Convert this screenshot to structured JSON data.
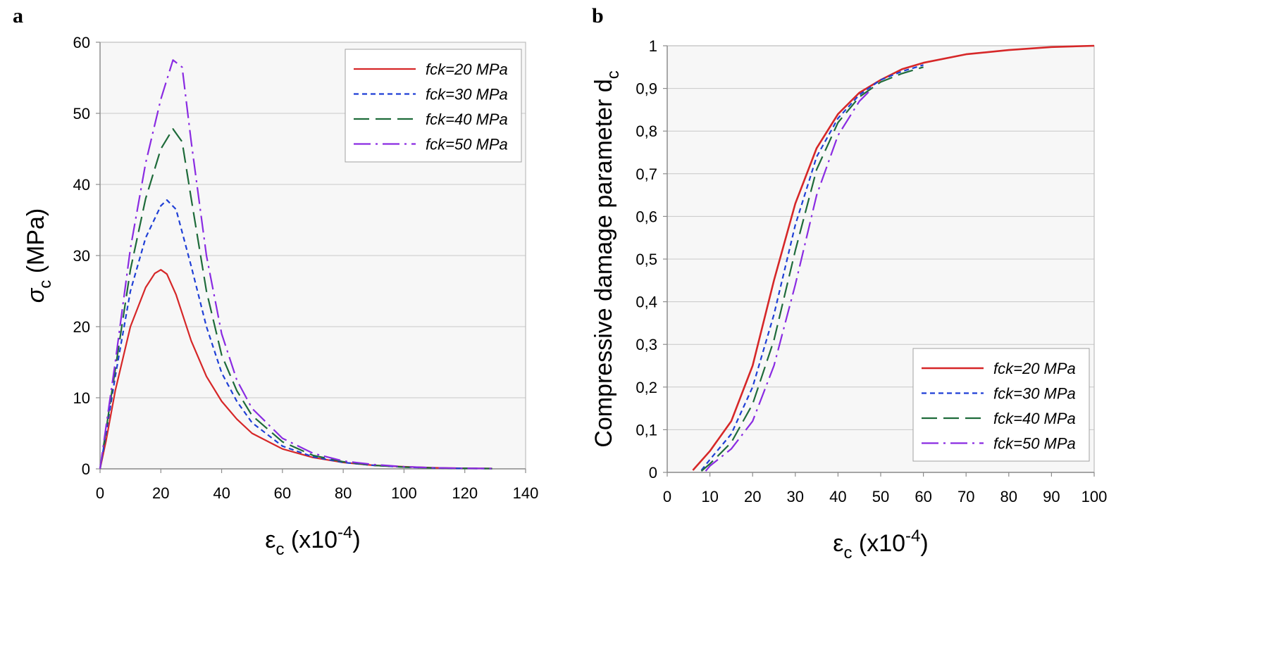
{
  "panels": {
    "a": "a",
    "b": "b"
  },
  "chart_data": [
    {
      "type": "line",
      "panel": "a",
      "xlabel": {
        "main": "ε",
        "sub": "c",
        "rest": " (x10",
        "sup": "-4",
        "close": ")"
      },
      "ylabel": {
        "main": "σ",
        "sub": "c",
        "rest": " (MPa)"
      },
      "xlim": [
        0,
        140
      ],
      "ylim": [
        0,
        60
      ],
      "xticks": [
        0,
        20,
        40,
        60,
        80,
        100,
        120,
        140
      ],
      "yticks": [
        0,
        10,
        20,
        30,
        40,
        50,
        60
      ],
      "xtick_labels": [
        "0",
        "20",
        "40",
        "60",
        "80",
        "100",
        "120",
        "140"
      ],
      "ytick_labels": [
        "0",
        "10",
        "20",
        "30",
        "40",
        "50",
        "60"
      ],
      "legend": "top-right",
      "series": [
        {
          "name": "fck=20 MPa",
          "color": "#d62728",
          "dash": "",
          "x": [
            0,
            2,
            5,
            10,
            15,
            18,
            20,
            22,
            25,
            30,
            35,
            40,
            45,
            50,
            60,
            70,
            80,
            90,
            100,
            110,
            120,
            129
          ],
          "y": [
            0,
            4,
            11,
            20,
            25.5,
            27.5,
            28,
            27.4,
            24.5,
            18,
            13,
            9.5,
            7,
            5,
            2.8,
            1.6,
            0.9,
            0.5,
            0.3,
            0.15,
            0.08,
            0.05
          ]
        },
        {
          "name": "fck=30 MPa",
          "color": "#1f3fd6",
          "dash": "7,5",
          "x": [
            0,
            2,
            5,
            10,
            15,
            20,
            22,
            25,
            30,
            35,
            40,
            45,
            50,
            60,
            70,
            80,
            90,
            100,
            110,
            120,
            129
          ],
          "y": [
            0,
            5,
            13,
            25,
            32.5,
            37,
            37.8,
            36.5,
            28.5,
            20,
            13.5,
            9.5,
            6.5,
            3.2,
            1.7,
            0.9,
            0.5,
            0.25,
            0.12,
            0.06,
            0.04
          ]
        },
        {
          "name": "fck=40 MPa",
          "color": "#1e6b3a",
          "dash": "22,9",
          "x": [
            0,
            2,
            5,
            10,
            15,
            20,
            24,
            27,
            30,
            35,
            40,
            45,
            50,
            60,
            70,
            80,
            90,
            100,
            110,
            120,
            129
          ],
          "y": [
            0,
            5.5,
            14,
            28,
            38,
            45,
            47.8,
            46,
            38,
            25,
            16,
            11,
            7.5,
            3.8,
            1.9,
            1,
            0.5,
            0.25,
            0.12,
            0.06,
            0.04
          ]
        },
        {
          "name": "fck=50 MPa",
          "color": "#8a2be2",
          "dash": "24,7,3,7",
          "x": [
            0,
            2,
            5,
            10,
            15,
            20,
            24,
            27,
            30,
            35,
            40,
            45,
            50,
            60,
            70,
            80,
            90,
            100,
            110,
            120,
            129
          ],
          "y": [
            0,
            6,
            15,
            31,
            43,
            52,
            57.5,
            56.5,
            46,
            30,
            19,
            12.5,
            8.5,
            4.3,
            2.2,
            1.1,
            0.6,
            0.3,
            0.15,
            0.08,
            0.05
          ]
        }
      ]
    },
    {
      "type": "line",
      "panel": "b",
      "xlabel": {
        "main": "ε",
        "sub": "c",
        "rest": " (x10",
        "sup": "-4",
        "close": ")"
      },
      "ylabel": {
        "main": "Compressive damage parameter  d",
        "sub": "c",
        "rest": ""
      },
      "xlim": [
        0,
        100
      ],
      "ylim": [
        0,
        1
      ],
      "xticks": [
        0,
        10,
        20,
        30,
        40,
        50,
        60,
        70,
        80,
        90,
        100
      ],
      "yticks": [
        0,
        0.1,
        0.2,
        0.3,
        0.4,
        0.5,
        0.6,
        0.7,
        0.8,
        0.9,
        1
      ],
      "xtick_labels": [
        "0",
        "10",
        "20",
        "30",
        "40",
        "50",
        "60",
        "70",
        "80",
        "90",
        "100"
      ],
      "ytick_labels": [
        "0",
        "0,1",
        "0,2",
        "0,3",
        "0,4",
        "0,5",
        "0,6",
        "0,7",
        "0,8",
        "0,9",
        "1"
      ],
      "legend": "bottom-right",
      "series": [
        {
          "name": "fck=20 MPa",
          "color": "#d62728",
          "dash": "",
          "x": [
            6,
            10,
            15,
            20,
            25,
            30,
            35,
            40,
            45,
            50,
            55,
            60,
            70,
            80,
            90,
            100
          ],
          "y": [
            0.005,
            0.05,
            0.12,
            0.25,
            0.45,
            0.63,
            0.76,
            0.84,
            0.89,
            0.92,
            0.945,
            0.96,
            0.98,
            0.99,
            0.997,
            1
          ]
        },
        {
          "name": "fck=30 MPa",
          "color": "#1f3fd6",
          "dash": "7,5",
          "x": [
            8,
            10,
            15,
            20,
            25,
            30,
            35,
            40,
            45,
            50,
            55,
            60
          ],
          "y": [
            0.005,
            0.03,
            0.09,
            0.2,
            0.37,
            0.58,
            0.74,
            0.83,
            0.885,
            0.92,
            0.94,
            0.955
          ]
        },
        {
          "name": "fck=40 MPa",
          "color": "#1e6b3a",
          "dash": "22,9",
          "x": [
            8,
            10,
            15,
            20,
            25,
            30,
            35,
            40,
            45,
            50,
            55,
            60
          ],
          "y": [
            0.003,
            0.02,
            0.07,
            0.16,
            0.31,
            0.52,
            0.71,
            0.82,
            0.88,
            0.915,
            0.935,
            0.95
          ]
        },
        {
          "name": "fck=50 MPa",
          "color": "#8a2be2",
          "dash": "24,7,3,7",
          "x": [
            9,
            10,
            15,
            20,
            25,
            30,
            35,
            40,
            45,
            48
          ],
          "y": [
            0.003,
            0.015,
            0.055,
            0.12,
            0.25,
            0.44,
            0.65,
            0.79,
            0.87,
            0.9
          ]
        }
      ]
    }
  ]
}
